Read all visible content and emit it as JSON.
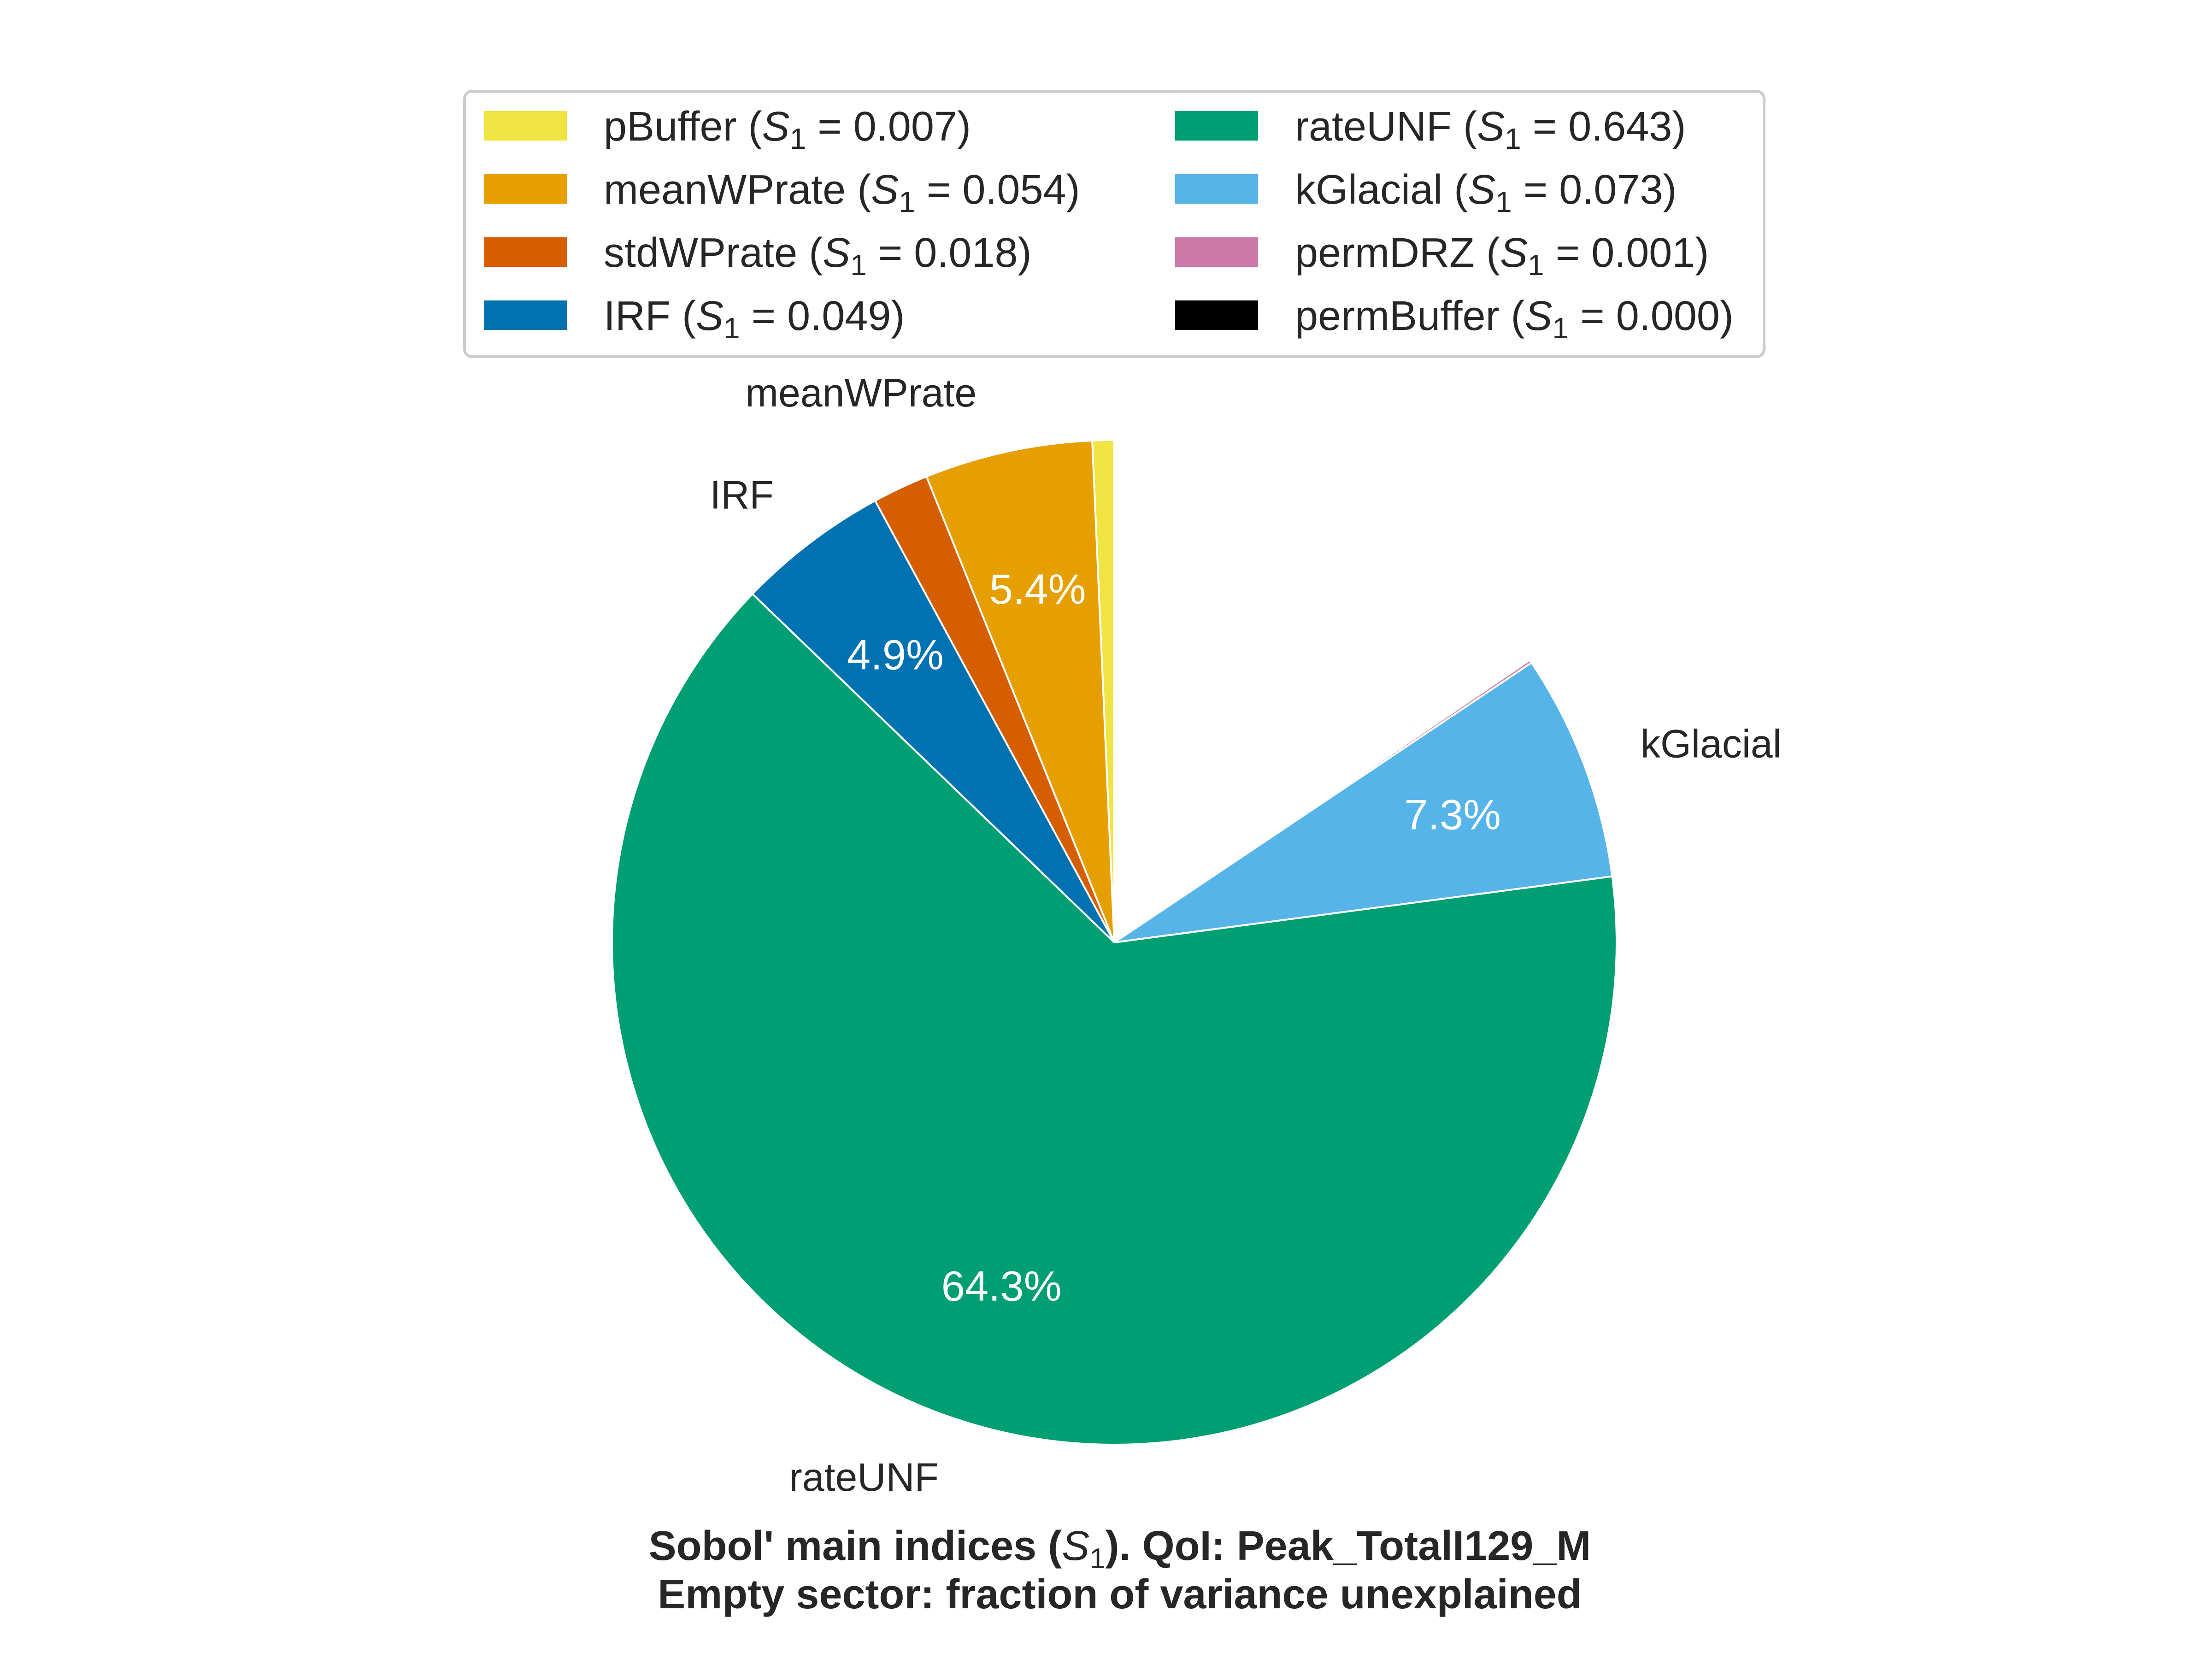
{
  "chart_data": {
    "type": "pie",
    "slices": [
      {
        "name": "pBuffer",
        "value": 0.007,
        "color": "#f0e442",
        "legend": "pBuffer (",
        "legend_tail": " = 0.007)",
        "label": "",
        "pct": ""
      },
      {
        "name": "meanWPrate",
        "value": 0.054,
        "color": "#e69f00",
        "legend": "meanWPrate (",
        "legend_tail": " = 0.054)",
        "label": "meanWPrate",
        "pct": "5.4%"
      },
      {
        "name": "stdWPrate",
        "value": 0.018,
        "color": "#d55e00",
        "legend": "stdWPrate (",
        "legend_tail": " = 0.018)",
        "label": "",
        "pct": ""
      },
      {
        "name": "IRF",
        "value": 0.049,
        "color": "#0072b2",
        "legend": "IRF (",
        "legend_tail": " = 0.049)",
        "label": "IRF",
        "pct": "4.9%"
      },
      {
        "name": "rateUNF",
        "value": 0.643,
        "color": "#009e73",
        "legend": "rateUNF (",
        "legend_tail": " = 0.643)",
        "label": "rateUNF",
        "pct": "64.3%"
      },
      {
        "name": "kGlacial",
        "value": 0.073,
        "color": "#56b4e9",
        "legend": "kGlacial (",
        "legend_tail": " = 0.073)",
        "label": "kGlacial",
        "pct": "7.3%"
      },
      {
        "name": "permDRZ",
        "value": 0.001,
        "color": "#cc79a7",
        "legend": "permDRZ (",
        "legend_tail": " = 0.001)",
        "label": "",
        "pct": ""
      },
      {
        "name": "permBuffer",
        "value": 0.0,
        "color": "#000000",
        "legend": "permBuffer (",
        "legend_tail": " = 0.000)",
        "label": "",
        "pct": ""
      }
    ],
    "symbol": "S",
    "symbol_sub": "1",
    "direction": "counterclockwise",
    "start_angle": "top",
    "legend_placement": "top-center",
    "title_line1_a": "Sobol' main indices (",
    "title_line1_b": "). QoI: Peak_TotalI129_M",
    "title_line2": "Empty sector: fraction of variance unexplained"
  }
}
